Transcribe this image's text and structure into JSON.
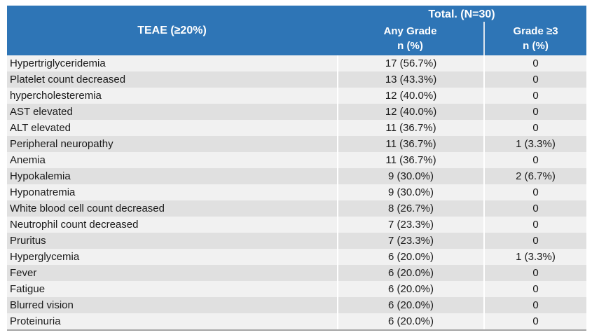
{
  "table": {
    "header": {
      "teae_label": "TEAE (≥20%)",
      "total_label": "Total. (N=30)",
      "any_grade_label": "Any Grade",
      "any_grade_unit": "n (%)",
      "grade3_label": "Grade ≥3",
      "grade3_unit": "n (%)"
    },
    "rows": [
      {
        "teae": "Hypertriglyceridemia",
        "any_grade": "17 (56.7%)",
        "grade3": "0"
      },
      {
        "teae": "Platelet count decreased",
        "any_grade": "13 (43.3%)",
        "grade3": "0"
      },
      {
        "teae": "hypercholesteremia",
        "any_grade": "12 (40.0%)",
        "grade3": "0"
      },
      {
        "teae": "AST elevated",
        "any_grade": "12 (40.0%)",
        "grade3": "0"
      },
      {
        "teae": "ALT elevated",
        "any_grade": "11 (36.7%)",
        "grade3": "0"
      },
      {
        "teae": "Peripheral neuropathy",
        "any_grade": "11 (36.7%)",
        "grade3": "1 (3.3%)"
      },
      {
        "teae": "Anemia",
        "any_grade": "11 (36.7%)",
        "grade3": "0"
      },
      {
        "teae": "Hypokalemia",
        "any_grade": "9 (30.0%)",
        "grade3": "2 (6.7%)"
      },
      {
        "teae": "Hyponatremia",
        "any_grade": "9 (30.0%)",
        "grade3": "0"
      },
      {
        "teae": "White blood cell count decreased",
        "any_grade": "8 (26.7%)",
        "grade3": "0"
      },
      {
        "teae": "Neutrophil count decreased",
        "any_grade": "7 (23.3%)",
        "grade3": "0"
      },
      {
        "teae": "Pruritus",
        "any_grade": "7 (23.3%)",
        "grade3": "0"
      },
      {
        "teae": "Hyperglycemia",
        "any_grade": "6 (20.0%)",
        "grade3": "1 (3.3%)"
      },
      {
        "teae": "Fever",
        "any_grade": "6 (20.0%)",
        "grade3": "0"
      },
      {
        "teae": "Fatigue",
        "any_grade": "6 (20.0%)",
        "grade3": "0"
      },
      {
        "teae": "Blurred vision",
        "any_grade": "6 (20.0%)",
        "grade3": "0"
      },
      {
        "teae": "Proteinuria",
        "any_grade": "6 (20.0%)",
        "grade3": "0"
      }
    ],
    "colors": {
      "header_bg": "#2E75B6",
      "header_text": "#FFFFFF",
      "header_divider": "#DCE4EE",
      "row_light": "#F1F1F1",
      "row_dark": "#E0E0E0",
      "body_text": "#1A1A1A",
      "col_divider": "#FFFFFF",
      "bottom_border": "#A6A6A6"
    }
  }
}
